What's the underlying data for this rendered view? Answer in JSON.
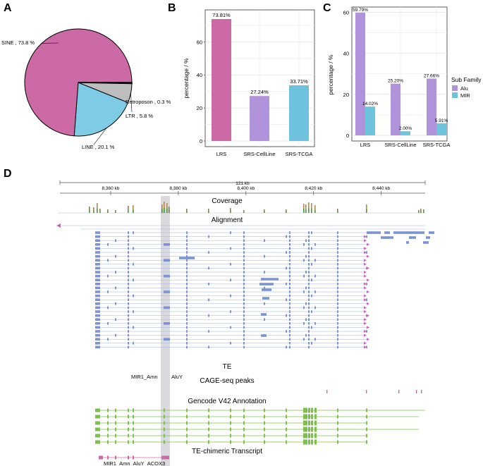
{
  "panels": {
    "a": {
      "letter": "A"
    },
    "b": {
      "letter": "B"
    },
    "c": {
      "letter": "C"
    },
    "d": {
      "letter": "D"
    }
  },
  "chart_data": [
    {
      "id": "A",
      "type": "pie",
      "labels": [
        "SINE",
        "LINE",
        "LTR",
        "Retroposon"
      ],
      "values": [
        73.8,
        20.1,
        5.8,
        0.3
      ],
      "label_texts": [
        "SINE , 73.8 %",
        "LINE , 20.1 %",
        "LTR , 5.8 %",
        "Retroposon , 0.3 %"
      ],
      "colors": [
        "#cc6aa5",
        "#7ecbe6",
        "#bdbdbd",
        "#333333"
      ]
    },
    {
      "id": "B",
      "type": "bar",
      "categories": [
        "LRS",
        "SRS-CellLine",
        "SRS-TCGA"
      ],
      "values": [
        73.81,
        27.24,
        33.71
      ],
      "value_labels": [
        "73.81%",
        "27.24%",
        "33.71%"
      ],
      "colors": [
        "#cc6aa5",
        "#b193dc",
        "#6ec3dc"
      ],
      "xlabel": "",
      "ylabel": "percentage / %",
      "ylim": [
        0,
        78
      ],
      "yticks": [
        0,
        20,
        40,
        60
      ],
      "ytick_labels": [
        "0",
        "20",
        "40",
        "60"
      ],
      "grid": true
    },
    {
      "id": "C",
      "type": "bar",
      "categories": [
        "LRS",
        "SRS-CellLine",
        "SRS-TCGA"
      ],
      "series": [
        {
          "name": "Alu",
          "values": [
            59.79,
            25.2,
            27.66
          ],
          "value_labels": [
            "59.79%",
            "25.20%",
            "27.66%"
          ],
          "color": "#b193dc"
        },
        {
          "name": "MIR",
          "values": [
            14.02,
            2.0,
            5.91
          ],
          "value_labels": [
            "14.02%",
            "2.00%",
            "5.91%"
          ],
          "color": "#6ec3dc"
        }
      ],
      "legend_title": "Sub Family",
      "legend_position": "right",
      "ylabel": "percentage / %",
      "ylim": [
        0,
        63
      ],
      "yticks": [
        0,
        20,
        40,
        60
      ],
      "ytick_labels": [
        "0",
        "20",
        "40",
        "60"
      ],
      "grid": true
    }
  ],
  "genome_browser": {
    "span_label": "121 kb",
    "ruler_ticks": [
      {
        "label": "8,360 kb",
        "kb": 8360
      },
      {
        "label": "8,380 kb",
        "kb": 8380
      },
      {
        "label": "8,400 kb",
        "kb": 8400
      },
      {
        "label": "8,420 kb",
        "kb": 8420
      },
      {
        "label": "8,440 kb",
        "kb": 8440
      }
    ],
    "range_kb": [
      8345,
      8453
    ],
    "tracks": {
      "coverage": "Coverage",
      "alignment": "Alignment",
      "te": "TE",
      "cage": "CAGE-seq peaks",
      "gencode": "Gencode V42 Annotation",
      "chimeric": "TE-chimeric Transcript"
    },
    "te_labels": [
      "MIR1_Amn",
      "AluY"
    ],
    "chimeric_transcript_label": "MIR1_Amn_AluY_ACOX3",
    "colors": {
      "read": "#7b93d1",
      "arrow": "#c95fc0",
      "gene": "#7cc04c",
      "highlight": "#d9d9de",
      "te": "#cc6aa5"
    }
  }
}
